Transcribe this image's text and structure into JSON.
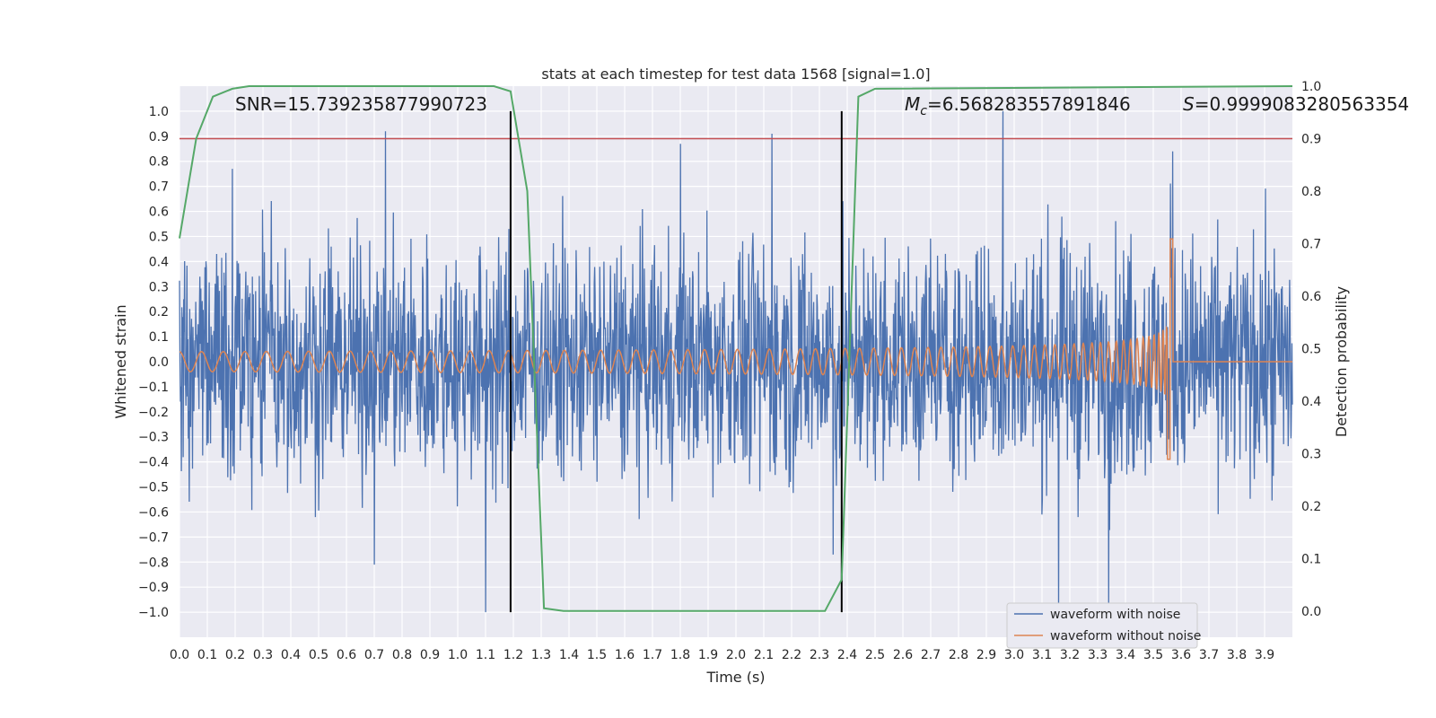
{
  "chart_data": {
    "type": "line",
    "title": "stats at each timestep for test data 1568 [signal=1.0]",
    "xlabel": "Time (s)",
    "ylabel_left": "Whitened strain",
    "ylabel_right": "Detection probability",
    "xlim": [
      0.0,
      4.0
    ],
    "ylim_left": [
      -1.1,
      1.1
    ],
    "ylim_right": [
      -0.05,
      1.0
    ],
    "x_ticks": [
      "0.0",
      "0.1",
      "0.2",
      "0.3",
      "0.4",
      "0.5",
      "0.6",
      "0.7",
      "0.8",
      "0.9",
      "1.0",
      "1.1",
      "1.2",
      "1.3",
      "1.4",
      "1.5",
      "1.6",
      "1.7",
      "1.8",
      "1.9",
      "2.0",
      "2.1",
      "2.2",
      "2.3",
      "2.4",
      "2.5",
      "2.6",
      "2.7",
      "2.8",
      "2.9",
      "3.0",
      "3.1",
      "3.2",
      "3.3",
      "3.4",
      "3.5",
      "3.6",
      "3.7",
      "3.8",
      "3.9"
    ],
    "y_ticks_left": [
      "1.0",
      "0.9",
      "0.8",
      "0.7",
      "0.6",
      "0.5",
      "0.4",
      "0.3",
      "0.2",
      "0.1",
      "0.0",
      "−0.1",
      "−0.2",
      "−0.3",
      "−0.4",
      "−0.5",
      "−0.6",
      "−0.7",
      "−0.8",
      "−0.9",
      "−1.0"
    ],
    "y_ticks_right": [
      "1.0",
      "0.9",
      "0.8",
      "0.7",
      "0.6",
      "0.5",
      "0.4",
      "0.3",
      "0.2",
      "0.1",
      "0.0"
    ],
    "grid": true,
    "legend_position": "lower right",
    "legend": [
      {
        "label": "waveform with noise",
        "color": "#4c72b0"
      },
      {
        "label": "waveform without noise",
        "color": "#dd8452"
      }
    ],
    "annotations": {
      "snr": "SNR=15.739235877990723",
      "mc_symbol": "M",
      "mc_sub": "c",
      "mc_value": "=6.568283557891846",
      "s_symbol": "S",
      "s_value": "=0.9999083280563354"
    },
    "threshold_line": {
      "axis": "right",
      "y": 0.9,
      "color": "#c44e52"
    },
    "vertical_lines": [
      1.19,
      2.38
    ],
    "vertical_line_color": "#000000",
    "series": [
      {
        "name": "waveform with noise",
        "color": "#4c72b0",
        "axis": "left",
        "kind": "noise",
        "envelope": 0.5,
        "peak_values": [
          {
            "x": 0.74,
            "y": 0.92
          },
          {
            "x": 0.19,
            "y": 0.77
          },
          {
            "x": 1.8,
            "y": 0.87
          },
          {
            "x": 2.13,
            "y": 0.91
          },
          {
            "x": 2.96,
            "y": 1.0
          },
          {
            "x": 3.57,
            "y": 0.84
          },
          {
            "x": 1.1,
            "y": -1.0
          },
          {
            "x": 3.16,
            "y": -0.99
          },
          {
            "x": 3.34,
            "y": -0.98
          },
          {
            "x": 0.7,
            "y": -0.81
          },
          {
            "x": 2.35,
            "y": -0.77
          }
        ]
      },
      {
        "name": "waveform without noise",
        "color": "#dd8452",
        "axis": "left",
        "kind": "chirp",
        "start_amplitude": 0.04,
        "merger_time": 3.57,
        "merger_peak_max": 0.49,
        "merger_peak_min": -0.39
      },
      {
        "name": "detection probability",
        "color": "#55a868",
        "axis": "right",
        "x": [
          0.0,
          0.06,
          0.12,
          0.19,
          0.25,
          1.13,
          1.19,
          1.25,
          1.31,
          1.38,
          2.32,
          2.38,
          2.44,
          2.5,
          4.0
        ],
        "y": [
          0.71,
          0.9,
          0.98,
          0.995,
          1.0,
          1.0,
          0.99,
          0.8,
          0.005,
          0.0,
          0.0,
          0.06,
          0.98,
          0.995,
          1.0
        ]
      }
    ]
  }
}
